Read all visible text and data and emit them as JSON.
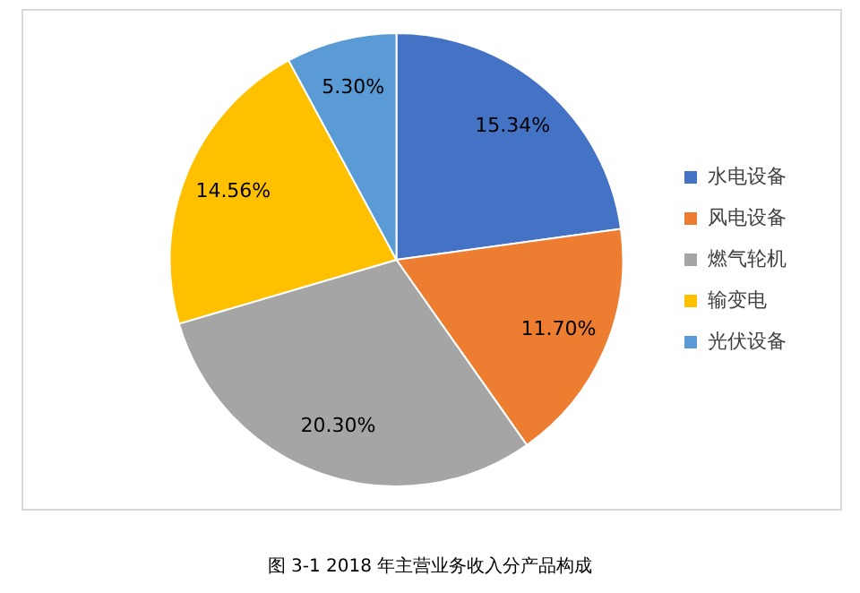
{
  "chart_data": {
    "type": "pie",
    "title": "图 3-1 2018 年主营业务收入分产品构成",
    "categories": [
      "水电设备",
      "风电设备",
      "燃气轮机",
      "输变电",
      "光伏设备"
    ],
    "values": [
      15.34,
      11.7,
      20.3,
      14.56,
      5.3
    ],
    "value_labels": [
      "15.34%",
      "11.70%",
      "20.30%",
      "14.56%",
      "5.30%"
    ],
    "colors": [
      "#4472c4",
      "#ed7d31",
      "#a5a5a5",
      "#ffc000",
      "#5b9bd5"
    ],
    "legend": "right"
  }
}
